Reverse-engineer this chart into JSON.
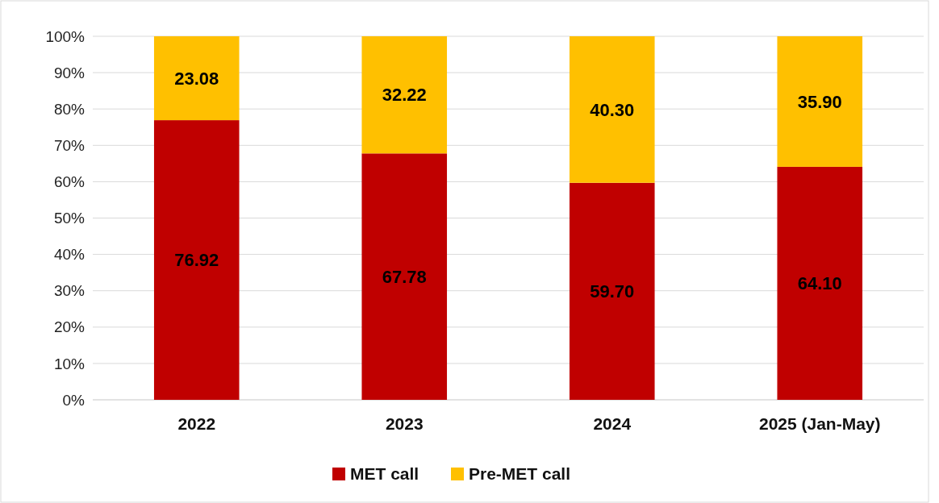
{
  "chart_data": {
    "type": "bar",
    "stacked": true,
    "categories": [
      "2022",
      "2023",
      "2024",
      "2025 (Jan-May)"
    ],
    "series": [
      {
        "name": "MET call",
        "color": "#c00000",
        "values": [
          76.92,
          67.78,
          59.7,
          64.1
        ]
      },
      {
        "name": "Pre-MET call",
        "color": "#ffc000",
        "values": [
          23.08,
          32.22,
          40.3,
          35.9
        ]
      }
    ],
    "value_labels": [
      [
        "76.92",
        "67.78",
        "59.70",
        "64.10"
      ],
      [
        "23.08",
        "32.22",
        "40.30",
        "35.90"
      ]
    ],
    "ylim": [
      0,
      100
    ],
    "yticks": [
      {
        "value": 0,
        "label": "0%"
      },
      {
        "value": 10,
        "label": "10%"
      },
      {
        "value": 20,
        "label": "20%"
      },
      {
        "value": 30,
        "label": "30%"
      },
      {
        "value": 40,
        "label": "40%"
      },
      {
        "value": 50,
        "label": "50%"
      },
      {
        "value": 60,
        "label": "60%"
      },
      {
        "value": 70,
        "label": "70%"
      },
      {
        "value": 80,
        "label": "80%"
      },
      {
        "value": 90,
        "label": "90%"
      },
      {
        "value": 100,
        "label": "100%"
      }
    ],
    "grid": "y",
    "legend": "bottom"
  }
}
